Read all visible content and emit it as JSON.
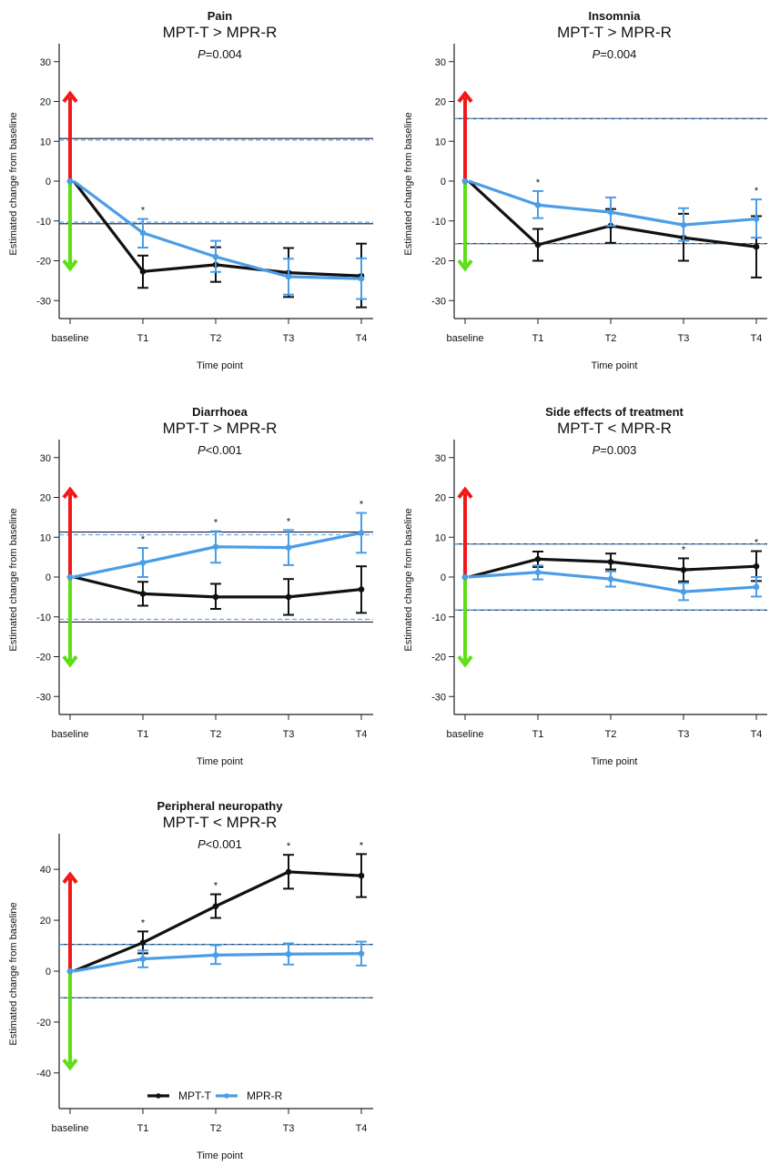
{
  "figure": {
    "colors": {
      "mpt_t": "#111111",
      "mpr_r": "#4a9de6",
      "worse_arrow": "#f01818",
      "better_arrow": "#5ae014",
      "axis": "#222222"
    },
    "legend": {
      "items": [
        "MPT-T",
        "MPR-R"
      ],
      "placement": "bottom-center of Peripheral neuropathy panel"
    }
  },
  "chart_data": [
    {
      "type": "line",
      "title": "Pain",
      "subtitle": "MPT-T > MPR-R",
      "p_label": "P",
      "p_value": "=0.004",
      "xlabel": "Time point",
      "ylabel": "Estimated change from baseline",
      "categories": [
        "baseline",
        "T1",
        "T2",
        "T3",
        "T4"
      ],
      "ylim": [
        -32,
        32
      ],
      "yticks": [
        30,
        20,
        10,
        0,
        -10,
        -20,
        -30
      ],
      "arrow_extent": 22,
      "mcid": {
        "MPT-T": 10.7,
        "MPR-R": 10.3
      },
      "significant": [
        "T1"
      ],
      "series": [
        {
          "name": "MPT-T",
          "values": [
            0,
            -22.7,
            -21.0,
            -23.0,
            -23.8
          ],
          "ci_low": [
            null,
            -26.8,
            -25.3,
            -29.1,
            -31.7
          ],
          "ci_high": [
            null,
            -18.7,
            -16.6,
            -16.8,
            -15.7
          ]
        },
        {
          "name": "MPR-R",
          "values": [
            0,
            -13.0,
            -19.0,
            -24.0,
            -24.5
          ],
          "ci_low": [
            null,
            -16.7,
            -22.8,
            -28.5,
            -29.6
          ],
          "ci_high": [
            null,
            -9.5,
            -15.0,
            -19.5,
            -19.4
          ]
        }
      ]
    },
    {
      "type": "line",
      "title": "Insomnia",
      "subtitle": "MPT-T > MPR-R",
      "p_label": "P",
      "p_value": "=0.004",
      "xlabel": "Time point",
      "ylabel": "Estimated change from baseline",
      "categories": [
        "baseline",
        "T1",
        "T2",
        "T3",
        "T4"
      ],
      "ylim": [
        -32,
        32
      ],
      "yticks": [
        30,
        20,
        10,
        0,
        -10,
        -20,
        -30
      ],
      "arrow_extent": 22,
      "mcid": {
        "MPT-T": 15.7,
        "MPR-R": 15.7
      },
      "significant": [
        "T1",
        "T4"
      ],
      "series": [
        {
          "name": "MPT-T",
          "values": [
            0,
            -16.0,
            -11.2,
            -14.2,
            -16.5
          ],
          "ci_low": [
            null,
            -20.0,
            -15.5,
            -20.0,
            -24.2
          ],
          "ci_high": [
            null,
            -12.0,
            -7.0,
            -8.2,
            -8.8
          ]
        },
        {
          "name": "MPR-R",
          "values": [
            0,
            -6.0,
            -7.8,
            -11.0,
            -9.5
          ],
          "ci_low": [
            null,
            -9.3,
            -11.2,
            -15.0,
            -14.2
          ],
          "ci_high": [
            null,
            -2.5,
            -4.1,
            -6.8,
            -4.6
          ]
        }
      ]
    },
    {
      "type": "line",
      "title": "Diarrhoea",
      "subtitle": "MPT-T > MPR-R",
      "p_label": "P",
      "p_value": "<0.001",
      "xlabel": "Time point",
      "ylabel": "Estimated change from baseline",
      "categories": [
        "baseline",
        "T1",
        "T2",
        "T3",
        "T4"
      ],
      "ylim": [
        -32,
        32
      ],
      "yticks": [
        30,
        20,
        10,
        0,
        -10,
        -20,
        -30
      ],
      "arrow_extent": 22,
      "mcid": {
        "MPT-T": 11.3,
        "MPR-R": 10.6
      },
      "significant": [
        "T1",
        "T2",
        "T3",
        "T4"
      ],
      "series": [
        {
          "name": "MPT-T",
          "values": [
            0,
            -4.2,
            -5.0,
            -5.0,
            -3.1
          ],
          "ci_low": [
            null,
            -7.2,
            -8.0,
            -9.5,
            -9.0
          ],
          "ci_high": [
            null,
            -1.2,
            -1.7,
            -0.5,
            2.7
          ]
        },
        {
          "name": "MPR-R",
          "values": [
            0,
            3.6,
            7.6,
            7.4,
            11.1
          ],
          "ci_low": [
            null,
            0.0,
            3.6,
            3.0,
            6.1
          ],
          "ci_high": [
            null,
            7.3,
            11.5,
            11.8,
            16.1
          ]
        }
      ]
    },
    {
      "type": "line",
      "title": "Side effects of treatment",
      "subtitle": "MPT-T < MPR-R",
      "p_label": "P",
      "p_value": "=0.003",
      "xlabel": "Time point",
      "ylabel": "Estimated change from baseline",
      "categories": [
        "baseline",
        "T1",
        "T2",
        "T3",
        "T4"
      ],
      "ylim": [
        -32,
        32
      ],
      "yticks": [
        30,
        20,
        10,
        0,
        -10,
        -20,
        -30
      ],
      "arrow_extent": 22,
      "mcid": {
        "MPT-T": 8.3,
        "MPR-R": 8.3
      },
      "significant": [
        "T3",
        "T4"
      ],
      "series": [
        {
          "name": "MPT-T",
          "values": [
            0,
            4.5,
            3.8,
            1.8,
            2.7
          ],
          "ci_low": [
            null,
            2.5,
            1.9,
            -1.1,
            -1.0
          ],
          "ci_high": [
            null,
            6.4,
            5.9,
            4.7,
            6.5
          ]
        },
        {
          "name": "MPR-R",
          "values": [
            0,
            1.2,
            -0.5,
            -3.7,
            -2.5
          ],
          "ci_low": [
            null,
            -0.6,
            -2.4,
            -5.8,
            -4.9
          ],
          "ci_high": [
            null,
            2.9,
            1.4,
            -1.5,
            0.0
          ]
        }
      ]
    },
    {
      "type": "line",
      "title": "Peripheral neuropathy",
      "subtitle": "MPT-T < MPR-R",
      "p_label": "P",
      "p_value": "<0.001",
      "xlabel": "Time point",
      "ylabel": "Estimated change from baseline",
      "categories": [
        "baseline",
        "T1",
        "T2",
        "T3",
        "T4"
      ],
      "ylim": [
        -54,
        54
      ],
      "yticks": [
        40,
        20,
        0,
        -20,
        -40
      ],
      "arrow_extent": 38,
      "mcid": {
        "MPT-T": 10.5,
        "MPR-R": 10.5
      },
      "significant": [
        "T1",
        "T2",
        "T3",
        "T4"
      ],
      "legend": true,
      "series": [
        {
          "name": "MPT-T",
          "values": [
            0,
            11.2,
            25.5,
            39.0,
            37.5
          ],
          "ci_low": [
            null,
            7.0,
            20.9,
            32.4,
            29.1
          ],
          "ci_high": [
            null,
            15.6,
            30.2,
            45.7,
            46.0
          ]
        },
        {
          "name": "MPR-R",
          "values": [
            0,
            4.8,
            6.3,
            6.7,
            6.9
          ],
          "ci_low": [
            null,
            1.5,
            2.8,
            2.6,
            2.2
          ],
          "ci_high": [
            null,
            8.1,
            10.2,
            10.9,
            11.6
          ]
        }
      ]
    }
  ]
}
